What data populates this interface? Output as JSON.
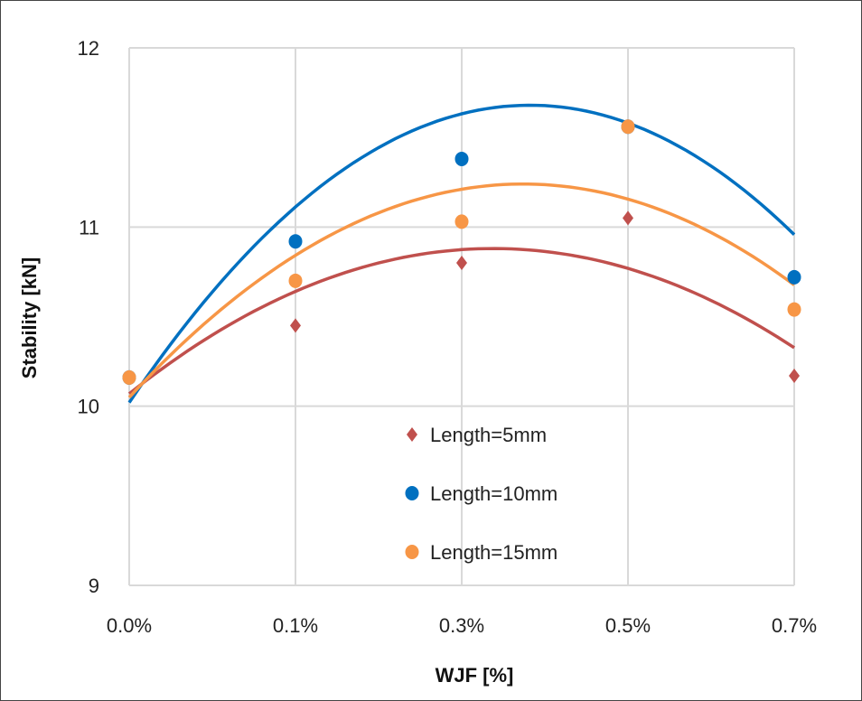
{
  "chart_data": {
    "type": "scatter",
    "title": "",
    "xlabel": "WJF [%]",
    "ylabel": "Stability [kN]",
    "categories": [
      "0.0%",
      "0.1%",
      "0.3%",
      "0.5%",
      "0.7%"
    ],
    "ylim": [
      9,
      12
    ],
    "yticks": [
      "9",
      "10",
      "11",
      "12"
    ],
    "grid": true,
    "legend_position": "bottom-center",
    "series": [
      {
        "name": "Length=5mm",
        "marker": "diamond",
        "color": "#C0504D",
        "values": [
          10.16,
          10.45,
          10.8,
          11.05,
          10.17
        ],
        "trendline": {
          "type": "polynomial-2",
          "vertex": [
            3.19,
            10.88
          ],
          "curvature": -0.169
        }
      },
      {
        "name": "Length=10mm",
        "marker": "circle",
        "color": "#0070C0",
        "values": [
          10.16,
          10.92,
          11.38,
          11.56,
          10.72
        ],
        "trendline": {
          "type": "polynomial-2",
          "vertex": [
            3.41,
            11.68
          ],
          "curvature": -0.2857
        }
      },
      {
        "name": "Length=15mm",
        "marker": "circle",
        "color": "#F79646",
        "values": [
          10.16,
          10.7,
          11.03,
          11.56,
          10.54
        ],
        "trendline": {
          "type": "polynomial-2",
          "vertex": [
            3.37,
            11.24
          ],
          "curvature": -0.212
        }
      }
    ]
  }
}
